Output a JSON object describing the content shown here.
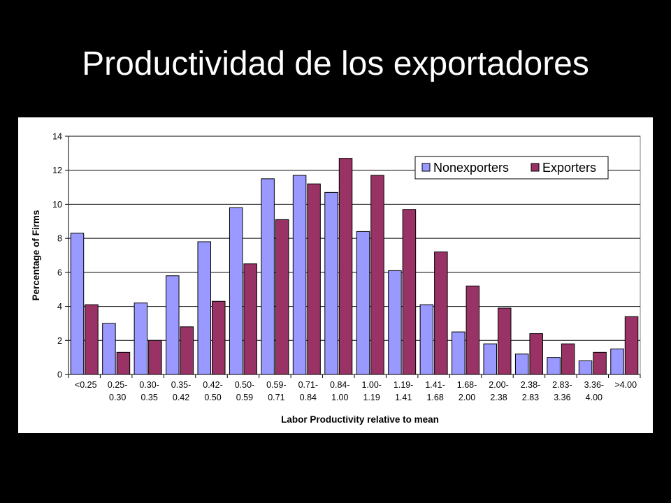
{
  "slide": {
    "title": "Productividad de los exportadores"
  },
  "colors": {
    "nonexporters": "#9999FF",
    "exporters": "#993366",
    "plot_bg": "#FFFFFF",
    "gridline": "#000000"
  },
  "chart_data": {
    "type": "bar",
    "title": "",
    "xlabel": "Labor Productivity relative to mean",
    "ylabel": "Percentage of Firms",
    "ylim": [
      0,
      14
    ],
    "yticks": [
      0,
      2,
      4,
      6,
      8,
      10,
      12,
      14
    ],
    "grid": true,
    "legend": "top-right",
    "categories": [
      [
        "<0.25"
      ],
      [
        "0.25-",
        "0.30"
      ],
      [
        "0.30-",
        "0.35"
      ],
      [
        "0.35-",
        "0.42"
      ],
      [
        "0.42-",
        "0.50"
      ],
      [
        "0.50-",
        "0.59"
      ],
      [
        "0.59-",
        "0.71"
      ],
      [
        "0.71-",
        "0.84"
      ],
      [
        "0.84-",
        "1.00"
      ],
      [
        "1.00-",
        "1.19"
      ],
      [
        "1.19-",
        "1.41"
      ],
      [
        "1.41-",
        "1.68"
      ],
      [
        "1.68-",
        "2.00"
      ],
      [
        "2.00-",
        "2.38"
      ],
      [
        "2.38-",
        "2.83"
      ],
      [
        "2.83-",
        "3.36"
      ],
      [
        "3.36-",
        "4.00"
      ],
      [
        ">4.00"
      ]
    ],
    "series": [
      {
        "name": "Nonexporters",
        "values": [
          8.3,
          3.0,
          4.2,
          5.8,
          7.8,
          9.8,
          11.5,
          11.7,
          10.7,
          8.4,
          6.1,
          4.1,
          2.5,
          1.8,
          1.2,
          1.0,
          0.8,
          1.5
        ]
      },
      {
        "name": "Exporters",
        "values": [
          4.1,
          1.3,
          2.0,
          2.8,
          4.3,
          6.5,
          9.1,
          11.2,
          12.7,
          11.7,
          9.7,
          7.2,
          5.2,
          3.9,
          2.4,
          1.8,
          1.3,
          3.4
        ]
      }
    ]
  }
}
